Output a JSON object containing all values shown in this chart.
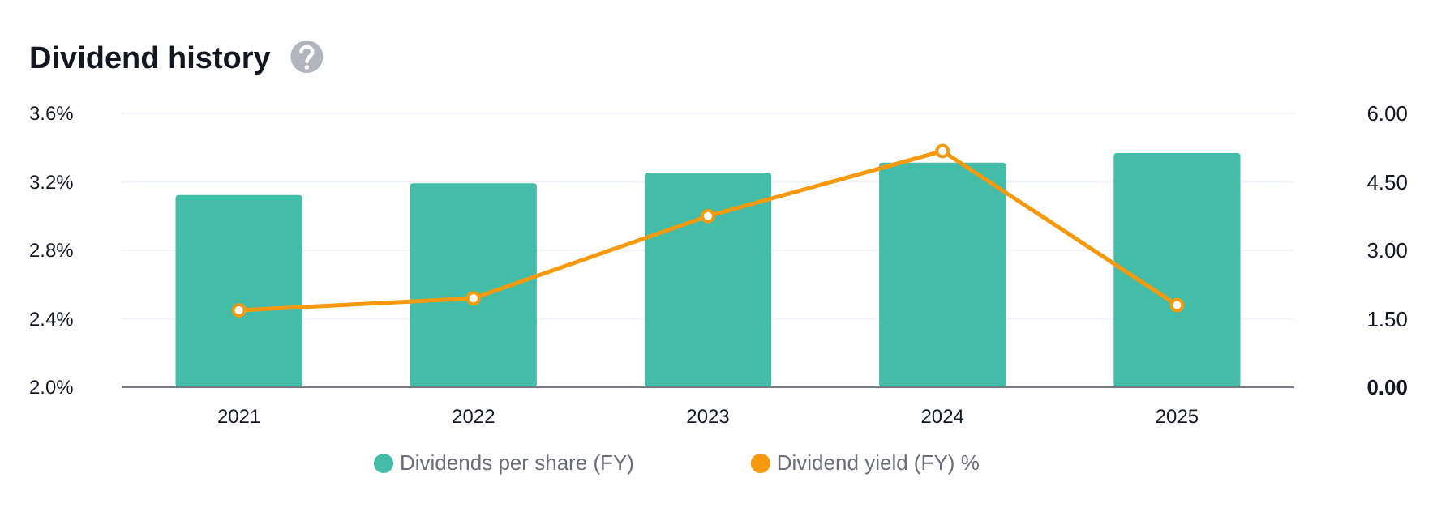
{
  "chart_data": {
    "type": "bar",
    "title": "Dividend history",
    "categories": [
      "2021",
      "2022",
      "2023",
      "2024",
      "2025"
    ],
    "series": [
      {
        "name": "Dividends per share (FY)",
        "axis": "y2",
        "color": "#43bda8",
        "values": [
          4.21,
          4.47,
          4.7,
          4.92,
          5.13
        ]
      },
      {
        "name": "Dividend yield (FY) %",
        "type": "line",
        "axis": "y",
        "color": "#f7990c",
        "marker": "circle",
        "values": [
          2.45,
          2.52,
          3.0,
          3.38,
          2.48
        ]
      }
    ],
    "ylim": [
      2.0,
      3.6
    ],
    "yticks": [
      {
        "value": 2.0,
        "label": "2.0%"
      },
      {
        "value": 2.4,
        "label": "2.4%"
      },
      {
        "value": 2.8,
        "label": "2.8%"
      },
      {
        "value": 3.2,
        "label": "3.2%"
      },
      {
        "value": 3.6,
        "label": "3.6%"
      }
    ],
    "y2lim": [
      0,
      6
    ],
    "y2ticks": [
      {
        "value": 0,
        "label": "0.00"
      },
      {
        "value": 1.5,
        "label": "1.50"
      },
      {
        "value": 3,
        "label": "3.00"
      },
      {
        "value": 4.5,
        "label": "4.50"
      },
      {
        "value": 6,
        "label": "6.00"
      }
    ],
    "grid": "y",
    "legend": "bottom"
  }
}
